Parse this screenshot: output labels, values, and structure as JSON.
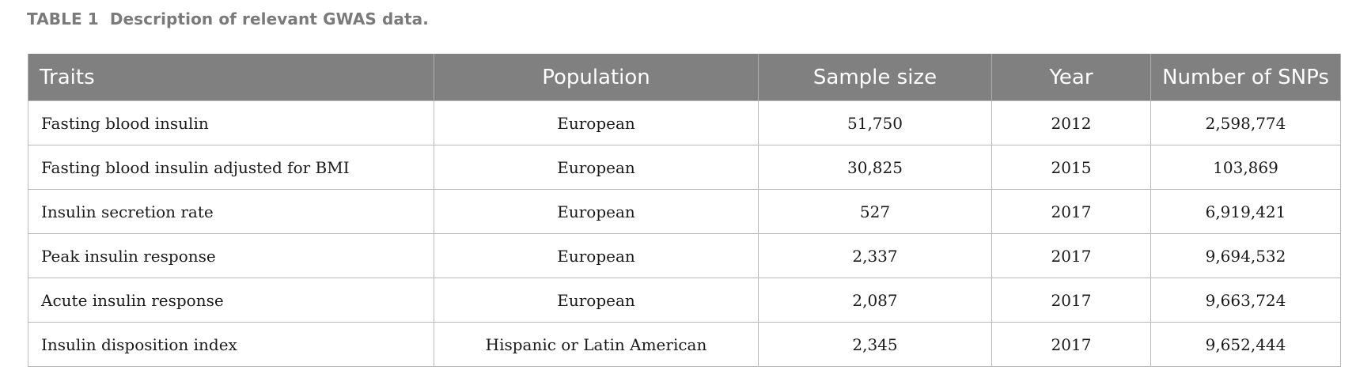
{
  "caption": {
    "label": "TABLE 1",
    "text": "Description of relevant GWAS data."
  },
  "table": {
    "headers": [
      "Traits",
      "Population",
      "Sample size",
      "Year",
      "Number of SNPs"
    ],
    "rows": [
      [
        "Fasting blood insulin",
        "European",
        "51,750",
        "2012",
        "2,598,774"
      ],
      [
        "Fasting blood insulin adjusted for BMI",
        "European",
        "30,825",
        "2015",
        "103,869"
      ],
      [
        "Insulin secretion rate",
        "European",
        "527",
        "2017",
        "6,919,421"
      ],
      [
        "Peak insulin response",
        "European",
        "2,337",
        "2017",
        "9,694,532"
      ],
      [
        "Acute insulin response",
        "European",
        "2,087",
        "2017",
        "9,663,724"
      ],
      [
        "Insulin disposition index",
        "Hispanic or Latin American",
        "2,345",
        "2017",
        "9,652,444"
      ]
    ]
  },
  "colors": {
    "header_bg": "#808080",
    "caption": "#7a7a7a",
    "border": "#b9b9b9"
  }
}
